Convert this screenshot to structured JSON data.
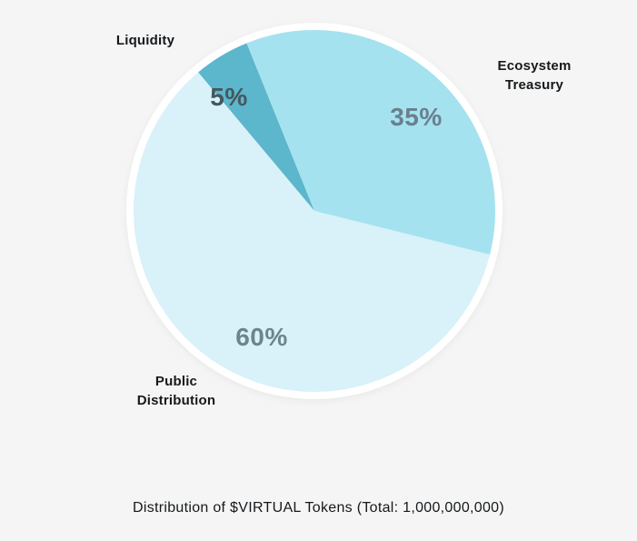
{
  "background_color": "#f5f5f5",
  "chart_data": {
    "type": "pie",
    "title": "Distribution of $VIRTUAL Tokens (Total: 1,000,000,000)",
    "start_angle_deg": -40,
    "ring_color": "#ffffff",
    "grid": false,
    "legend_position": "labels-around-pie",
    "slices": [
      {
        "id": "liquidity",
        "label": "Liquidity",
        "value": 5,
        "pct_label": "5%",
        "color": "#5cb6cc",
        "pct_color": "#445860"
      },
      {
        "id": "ecosystem-treasury",
        "label": "Ecosystem Treasury",
        "value": 35,
        "pct_label": "35%",
        "color": "#a5e2f0",
        "pct_color": "#69808d"
      },
      {
        "id": "public-distribution",
        "label": "Public Distribution",
        "value": 60,
        "pct_label": "60%",
        "color": "#d9f1f8",
        "pct_color": "#6d848f"
      }
    ]
  }
}
